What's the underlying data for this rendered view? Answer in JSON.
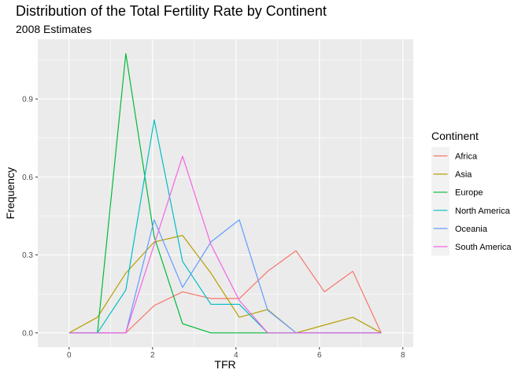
{
  "chart_data": {
    "type": "line",
    "title": "Distribution of the Total Fertility Rate by Continent",
    "subtitle": "2008 Estimates",
    "xlabel": "TFR",
    "ylabel": "Frequency",
    "xlim": [
      -0.75,
      8.25
    ],
    "ylim": [
      -0.055,
      1.13
    ],
    "x_ticks": [
      0,
      2,
      4,
      6,
      8
    ],
    "x_tick_labels": [
      "0",
      "2",
      "4",
      "6",
      "8"
    ],
    "y_ticks": [
      0.0,
      0.3,
      0.6,
      0.9
    ],
    "y_tick_labels": [
      "0.0",
      "0.3",
      "0.6",
      "0.9"
    ],
    "x": [
      0,
      0.68,
      1.36,
      2.04,
      2.72,
      3.4,
      4.08,
      4.76,
      5.44,
      6.12,
      6.8,
      7.48
    ],
    "legend_title": "Continent",
    "legend_position": "right",
    "series": [
      {
        "name": "Africa",
        "color": "#F8766D",
        "values": [
          0,
          0,
          0,
          0.105,
          0.158,
          0.132,
          0.132,
          0.237,
          0.316,
          0.158,
          0.237,
          0
        ]
      },
      {
        "name": "Asia",
        "color": "#B79F00",
        "values": [
          0,
          0.06,
          0.23,
          0.35,
          0.375,
          0.23,
          0.06,
          0.09,
          0,
          0.03,
          0.06,
          0
        ]
      },
      {
        "name": "Europe",
        "color": "#00BA38",
        "values": [
          0,
          0,
          1.075,
          0.37,
          0.035,
          0,
          0,
          0,
          0,
          0,
          0,
          0
        ]
      },
      {
        "name": "North America",
        "color": "#00BFC4",
        "values": [
          0,
          0,
          0.165,
          0.82,
          0.275,
          0.11,
          0.11,
          0,
          0,
          0,
          0,
          0
        ]
      },
      {
        "name": "Oceania",
        "color": "#619CFF",
        "values": [
          0,
          0,
          0,
          0.435,
          0.175,
          0.35,
          0.435,
          0.087,
          0,
          0,
          0,
          0
        ]
      },
      {
        "name": "South America",
        "color": "#F564E3",
        "values": [
          0,
          0,
          0,
          0.34,
          0.68,
          0.34,
          0.125,
          0,
          0,
          0,
          0,
          0
        ]
      }
    ]
  }
}
